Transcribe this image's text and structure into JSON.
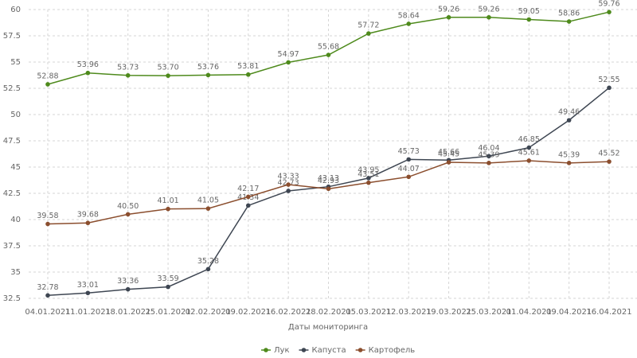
{
  "chart_data": {
    "type": "line",
    "x_label": "Даты мониторинга",
    "categories": [
      "04.01.2021",
      "11.01.2021",
      "18.01.2021",
      "25.01.2021",
      "02.02.2021",
      "09.02.2021",
      "16.02.2021",
      "28.02.2021",
      "05.03.2021",
      "12.03.2021",
      "19.03.2021",
      "25.03.2021",
      "01.04.2021",
      "09.04.2021",
      "16.04.2021"
    ],
    "series": [
      {
        "name": "Лук",
        "color": "#4e8a1c",
        "values": [
          52.88,
          53.96,
          53.73,
          53.7,
          53.76,
          53.81,
          54.97,
          55.68,
          57.72,
          58.64,
          59.26,
          59.26,
          59.05,
          58.86,
          59.76
        ],
        "value_labels": [
          "52.88",
          "53.96",
          "53.73",
          "53.70",
          "53.76",
          "53.81",
          "54.97",
          "55.68",
          "57.72",
          "58.64",
          "59.26",
          "59.26",
          "59.05",
          "58.86",
          "59.76"
        ]
      },
      {
        "name": "Капуста",
        "color": "#3e4652",
        "values": [
          32.78,
          33.01,
          33.36,
          33.59,
          35.28,
          41.34,
          42.73,
          43.13,
          43.95,
          45.73,
          45.66,
          46.04,
          46.85,
          49.46,
          52.55
        ],
        "value_labels": [
          "32.78",
          "33.01",
          "33.36",
          "33.59",
          "35.28",
          "41.34",
          "42.73",
          "43.13",
          "43.95",
          "45.73",
          "45.66",
          "46.04",
          "46.85",
          "49.46",
          "52.55"
        ]
      },
      {
        "name": "Картофель",
        "color": "#8b4e2e",
        "values": [
          39.58,
          39.68,
          40.5,
          41.01,
          41.05,
          42.17,
          43.33,
          42.93,
          43.51,
          44.07,
          45.45,
          45.39,
          45.61,
          45.39,
          45.52
        ],
        "value_labels": [
          "39.58",
          "39.68",
          "40.50",
          "41.01",
          "41.05",
          "42.17",
          "43.33",
          "42.93",
          "43.51",
          "44.07",
          "45.45",
          "45.39",
          "45.61",
          "45.39",
          "45.52"
        ]
      }
    ],
    "ylim": [
      32.5,
      60
    ],
    "yticks": [
      32.5,
      35,
      37.5,
      40,
      42.5,
      45,
      47.5,
      50,
      52.5,
      55,
      57.5,
      60
    ],
    "grid": true
  }
}
